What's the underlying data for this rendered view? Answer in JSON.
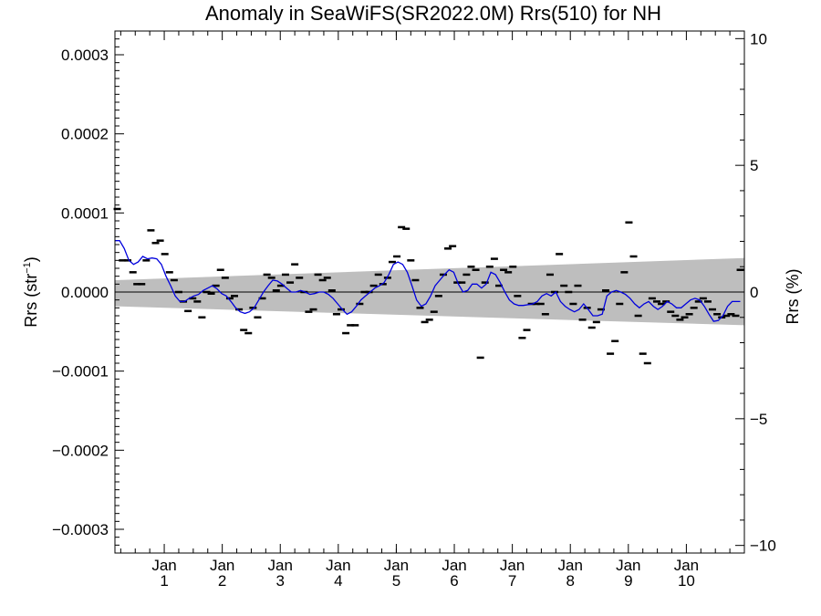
{
  "chart_data": {
    "type": "line",
    "title": "Anomaly in SeaWiFS(SR2022.0M) Rrs(510) for NH",
    "ylabel_left": "Rrs (str",
    "ylabel_left_sup": "−1",
    "ylabel_left_close": ")",
    "ylabel_right": "Rrs (%)",
    "xlim": [
      0,
      10.85
    ],
    "ylim": [
      -0.00033,
      0.00033
    ],
    "y2lim": [
      -10.3,
      10.3
    ],
    "grid": false,
    "legend": "none",
    "x_ticks": [
      {
        "x": 0.85,
        "line1": "Jan",
        "line2": "1"
      },
      {
        "x": 1.85,
        "line1": "Jan",
        "line2": "2"
      },
      {
        "x": 2.85,
        "line1": "Jan",
        "line2": "3"
      },
      {
        "x": 3.85,
        "line1": "Jan",
        "line2": "4"
      },
      {
        "x": 4.85,
        "line1": "Jan",
        "line2": "5"
      },
      {
        "x": 5.85,
        "line1": "Jan",
        "line2": "6"
      },
      {
        "x": 6.85,
        "line1": "Jan",
        "line2": "7"
      },
      {
        "x": 7.85,
        "line1": "Jan",
        "line2": "8"
      },
      {
        "x": 8.85,
        "line1": "Jan",
        "line2": "9"
      },
      {
        "x": 9.85,
        "line1": "Jan",
        "line2": "10"
      }
    ],
    "y_ticks_left": [
      {
        "v": 0.0003,
        "label": "0.0003"
      },
      {
        "v": 0.0002,
        "label": "0.0002"
      },
      {
        "v": 0.0001,
        "label": "0.0001"
      },
      {
        "v": 0.0,
        "label": "0.0000"
      },
      {
        "v": -0.0001,
        "label": "−0.0001"
      },
      {
        "v": -0.0002,
        "label": "−0.0002"
      },
      {
        "v": -0.0003,
        "label": "−0.0003"
      }
    ],
    "y_ticks_right": [
      {
        "v": 10,
        "label": "10"
      },
      {
        "v": 5,
        "label": "5"
      },
      {
        "v": 0,
        "label": "0"
      },
      {
        "v": -5,
        "label": "−5"
      },
      {
        "v": -10,
        "label": "−10"
      }
    ],
    "band": {
      "x": [
        0,
        10.85
      ],
      "upper": [
        1.5e-05,
        4.3e-05
      ],
      "lower": [
        -1.8e-05,
        -4.2e-05
      ],
      "color": "#bebebe"
    },
    "zero_line_color": "#000000",
    "series": [
      {
        "kind": "monthly",
        "color": "#000000",
        "points": [
          [
            0.04,
            0.000105
          ],
          [
            0.13,
            4e-05
          ],
          [
            0.22,
            4e-05
          ],
          [
            0.31,
            2.5e-05
          ],
          [
            0.38,
            1e-05
          ],
          [
            0.46,
            1e-05
          ],
          [
            0.54,
            4e-05
          ],
          [
            0.62,
            7.8e-05
          ],
          [
            0.7,
            6.2e-05
          ],
          [
            0.78,
            6.5e-05
          ],
          [
            0.86,
            4.8e-05
          ],
          [
            0.94,
            2.5e-05
          ],
          [
            1.02,
            1.5e-05
          ],
          [
            1.1,
            0.0
          ],
          [
            1.18,
            -1.2e-05
          ],
          [
            1.26,
            -2.4e-05
          ],
          [
            1.34,
            -8e-06
          ],
          [
            1.42,
            -1.2e-05
          ],
          [
            1.5,
            -3.2e-05
          ],
          [
            1.58,
            0.0
          ],
          [
            1.66,
            -2e-06
          ],
          [
            1.74,
            8e-06
          ],
          [
            1.82,
            2.8e-05
          ],
          [
            1.9,
            1.8e-05
          ],
          [
            1.98,
            -8e-06
          ],
          [
            2.06,
            -5e-06
          ],
          [
            2.14,
            -2.2e-05
          ],
          [
            2.22,
            -4.8e-05
          ],
          [
            2.3,
            -5.2e-05
          ],
          [
            2.38,
            -2e-05
          ],
          [
            2.46,
            -3.2e-05
          ],
          [
            2.54,
            -8e-06
          ],
          [
            2.62,
            2.2e-05
          ],
          [
            2.7,
            1.8e-05
          ],
          [
            2.78,
            2e-06
          ],
          [
            2.86,
            8e-06
          ],
          [
            2.94,
            2.2e-05
          ],
          [
            3.02,
            1.2e-05
          ],
          [
            3.1,
            3.5e-05
          ],
          [
            3.18,
            1.8e-05
          ],
          [
            3.26,
            0.0
          ],
          [
            3.34,
            -2.5e-05
          ],
          [
            3.42,
            -2.2e-05
          ],
          [
            3.5,
            2.2e-05
          ],
          [
            3.58,
            1.5e-05
          ],
          [
            3.66,
            1.8e-05
          ],
          [
            3.74,
            2e-06
          ],
          [
            3.82,
            -2.8e-05
          ],
          [
            3.9,
            -2.2e-05
          ],
          [
            3.98,
            -5.2e-05
          ],
          [
            4.06,
            -4.2e-05
          ],
          [
            4.14,
            -4.2e-05
          ],
          [
            4.22,
            -1.5e-05
          ],
          [
            4.3,
            0.0
          ],
          [
            4.38,
            0.0
          ],
          [
            4.46,
            8e-06
          ],
          [
            4.54,
            2.2e-05
          ],
          [
            4.62,
            1e-05
          ],
          [
            4.7,
            1.8e-05
          ],
          [
            4.78,
            3.8e-05
          ],
          [
            4.86,
            4.5e-05
          ],
          [
            4.94,
            8.2e-05
          ],
          [
            5.02,
            8e-05
          ],
          [
            5.1,
            4e-05
          ],
          [
            5.18,
            1.5e-05
          ],
          [
            5.26,
            -2e-05
          ],
          [
            5.34,
            -3.8e-05
          ],
          [
            5.42,
            -3.5e-05
          ],
          [
            5.5,
            -2.5e-05
          ],
          [
            5.58,
            -5e-06
          ],
          [
            5.66,
            2.2e-05
          ],
          [
            5.74,
            5.5e-05
          ],
          [
            5.82,
            5.8e-05
          ],
          [
            5.9,
            1.2e-05
          ],
          [
            5.98,
            1.2e-05
          ],
          [
            6.06,
            2.2e-05
          ],
          [
            6.14,
            3.2e-05
          ],
          [
            6.22,
            2.8e-05
          ],
          [
            6.3,
            -8.3e-05
          ],
          [
            6.38,
            1.2e-05
          ],
          [
            6.46,
            3.2e-05
          ],
          [
            6.54,
            4.2e-05
          ],
          [
            6.62,
            8e-06
          ],
          [
            6.7,
            2.8e-05
          ],
          [
            6.78,
            2.5e-05
          ],
          [
            6.86,
            3.2e-05
          ],
          [
            6.94,
            -5e-06
          ],
          [
            7.02,
            -5.8e-05
          ],
          [
            7.1,
            -4.8e-05
          ],
          [
            7.18,
            -1.5e-05
          ],
          [
            7.26,
            -1.5e-05
          ],
          [
            7.34,
            -1.5e-05
          ],
          [
            7.42,
            -2.8e-05
          ],
          [
            7.5,
            2.2e-05
          ],
          [
            7.58,
            0.0
          ],
          [
            7.66,
            4.8e-05
          ],
          [
            7.74,
            8e-06
          ],
          [
            7.82,
            0.0
          ],
          [
            7.9,
            -1.5e-05
          ],
          [
            7.98,
            8e-06
          ],
          [
            8.06,
            -3.5e-05
          ],
          [
            8.14,
            -2e-05
          ],
          [
            8.22,
            -4.5e-05
          ],
          [
            8.3,
            -3.8e-05
          ],
          [
            8.38,
            -2.2e-05
          ],
          [
            8.46,
            2e-06
          ],
          [
            8.54,
            -7.8e-05
          ],
          [
            8.62,
            -6.2e-05
          ],
          [
            8.7,
            -1.5e-05
          ],
          [
            8.78,
            2.5e-05
          ],
          [
            8.86,
            8.8e-05
          ],
          [
            8.94,
            4.5e-05
          ],
          [
            9.02,
            -3e-05
          ],
          [
            9.1,
            -7.8e-05
          ],
          [
            9.18,
            -9e-05
          ],
          [
            9.26,
            -8e-06
          ],
          [
            9.34,
            -1.2e-05
          ],
          [
            9.42,
            -1.5e-05
          ],
          [
            9.5,
            -1.2e-05
          ],
          [
            9.58,
            -2.5e-05
          ],
          [
            9.66,
            -3e-05
          ],
          [
            9.74,
            -3.5e-05
          ],
          [
            9.82,
            -3.2e-05
          ],
          [
            9.9,
            -2.8e-05
          ],
          [
            9.98,
            -2e-05
          ],
          [
            10.06,
            -1.2e-05
          ],
          [
            10.14,
            -8e-06
          ],
          [
            10.22,
            -1.2e-05
          ],
          [
            10.3,
            -2.2e-05
          ],
          [
            10.38,
            -2.8e-05
          ],
          [
            10.46,
            -3.2e-05
          ],
          [
            10.54,
            -3e-05
          ],
          [
            10.62,
            -2.8e-05
          ],
          [
            10.7,
            -3e-05
          ],
          [
            10.78,
            2.8e-05
          ]
        ]
      },
      {
        "kind": "running-mean",
        "color": "#0000dd",
        "points": [
          [
            0.0,
            6.5e-05
          ],
          [
            0.08,
            6.5e-05
          ],
          [
            0.16,
            5.5e-05
          ],
          [
            0.24,
            4e-05
          ],
          [
            0.32,
            3.5e-05
          ],
          [
            0.4,
            3.8e-05
          ],
          [
            0.48,
            4.5e-05
          ],
          [
            0.56,
            4.2e-05
          ],
          [
            0.64,
            4.3e-05
          ],
          [
            0.72,
            4.2e-05
          ],
          [
            0.8,
            3.5e-05
          ],
          [
            0.88,
            2e-05
          ],
          [
            0.96,
            8e-06
          ],
          [
            1.04,
            -5e-06
          ],
          [
            1.12,
            -1.2e-05
          ],
          [
            1.2,
            -1.2e-05
          ],
          [
            1.28,
            -8e-06
          ],
          [
            1.36,
            -5e-06
          ],
          [
            1.44,
            -3e-06
          ],
          [
            1.52,
            2e-06
          ],
          [
            1.6,
            5e-06
          ],
          [
            1.68,
            8e-06
          ],
          [
            1.76,
            4e-06
          ],
          [
            1.84,
            -2e-06
          ],
          [
            1.92,
            -5e-06
          ],
          [
            2.0,
            -1.2e-05
          ],
          [
            2.08,
            -2e-05
          ],
          [
            2.16,
            -2.5e-05
          ],
          [
            2.24,
            -2.7e-05
          ],
          [
            2.32,
            -2.5e-05
          ],
          [
            2.4,
            -2e-05
          ],
          [
            2.48,
            -1e-05
          ],
          [
            2.56,
            0.0
          ],
          [
            2.64,
            8e-06
          ],
          [
            2.72,
            1.5e-05
          ],
          [
            2.8,
            1.4e-05
          ],
          [
            2.88,
            1e-05
          ],
          [
            2.96,
            5e-06
          ],
          [
            3.04,
            0.0
          ],
          [
            3.12,
            0.0
          ],
          [
            3.2,
            2e-06
          ],
          [
            3.28,
            0.0
          ],
          [
            3.36,
            -3e-06
          ],
          [
            3.44,
            -2e-06
          ],
          [
            3.52,
            0.0
          ],
          [
            3.6,
            0.0
          ],
          [
            3.68,
            -3e-06
          ],
          [
            3.76,
            -8e-06
          ],
          [
            3.84,
            -1.5e-05
          ],
          [
            3.92,
            -2.2e-05
          ],
          [
            4.0,
            -2.8e-05
          ],
          [
            4.08,
            -2.5e-05
          ],
          [
            4.16,
            -1.8e-05
          ],
          [
            4.24,
            -1e-05
          ],
          [
            4.32,
            -5e-06
          ],
          [
            4.4,
            0.0
          ],
          [
            4.48,
            5e-06
          ],
          [
            4.56,
            8e-06
          ],
          [
            4.64,
            1.2e-05
          ],
          [
            4.72,
            2.2e-05
          ],
          [
            4.8,
            3.5e-05
          ],
          [
            4.88,
            3.8e-05
          ],
          [
            4.96,
            3.5e-05
          ],
          [
            5.04,
            2.5e-05
          ],
          [
            5.12,
            8e-06
          ],
          [
            5.2,
            -1e-05
          ],
          [
            5.28,
            -1.8e-05
          ],
          [
            5.36,
            -1.5e-05
          ],
          [
            5.44,
            -5e-06
          ],
          [
            5.52,
            8e-06
          ],
          [
            5.6,
            1.5e-05
          ],
          [
            5.68,
            2.2e-05
          ],
          [
            5.76,
            2.8e-05
          ],
          [
            5.84,
            2.5e-05
          ],
          [
            5.92,
            1e-05
          ],
          [
            6.0,
            0.0
          ],
          [
            6.08,
            2e-06
          ],
          [
            6.16,
            1e-05
          ],
          [
            6.24,
            1e-05
          ],
          [
            6.32,
            5e-06
          ],
          [
            6.4,
            1e-05
          ],
          [
            6.48,
            2.5e-05
          ],
          [
            6.56,
            2.2e-05
          ],
          [
            6.64,
            1.2e-05
          ],
          [
            6.72,
            0.0
          ],
          [
            6.8,
            -1e-05
          ],
          [
            6.88,
            -1.5e-05
          ],
          [
            6.96,
            -1.7e-05
          ],
          [
            7.04,
            -1.7e-05
          ],
          [
            7.12,
            -1.6e-05
          ],
          [
            7.2,
            -1.5e-05
          ],
          [
            7.28,
            -1.2e-05
          ],
          [
            7.36,
            -5e-06
          ],
          [
            7.44,
            -2e-06
          ],
          [
            7.52,
            -5e-06
          ],
          [
            7.6,
            0.0
          ],
          [
            7.68,
            -1.2e-05
          ],
          [
            7.76,
            -1.8e-05
          ],
          [
            7.84,
            -2.2e-05
          ],
          [
            7.92,
            -2.5e-05
          ],
          [
            8.0,
            -2.2e-05
          ],
          [
            8.08,
            -1.5e-05
          ],
          [
            8.16,
            -2.2e-05
          ],
          [
            8.24,
            -3e-05
          ],
          [
            8.32,
            -3e-05
          ],
          [
            8.4,
            -2.8e-05
          ],
          [
            8.48,
            -5e-06
          ],
          [
            8.56,
            0.0
          ],
          [
            8.64,
            2e-06
          ],
          [
            8.72,
            0.0
          ],
          [
            8.8,
            -3e-06
          ],
          [
            8.88,
            -8e-06
          ],
          [
            8.96,
            -1.5e-05
          ],
          [
            9.04,
            -2e-05
          ],
          [
            9.12,
            -1.5e-05
          ],
          [
            9.2,
            -1.2e-05
          ],
          [
            9.28,
            -1.8e-05
          ],
          [
            9.36,
            -2.2e-05
          ],
          [
            9.44,
            -1.8e-05
          ],
          [
            9.52,
            -1.2e-05
          ],
          [
            9.6,
            -1.5e-05
          ],
          [
            9.68,
            -2e-05
          ],
          [
            9.76,
            -2e-05
          ],
          [
            9.84,
            -1.5e-05
          ],
          [
            9.92,
            -1e-05
          ],
          [
            10.0,
            -8e-06
          ],
          [
            10.08,
            -1e-05
          ],
          [
            10.16,
            -1.8e-05
          ],
          [
            10.24,
            -2.8e-05
          ],
          [
            10.32,
            -3.7e-05
          ],
          [
            10.4,
            -3.6e-05
          ],
          [
            10.48,
            -3e-05
          ],
          [
            10.56,
            -1.8e-05
          ],
          [
            10.64,
            -1.2e-05
          ],
          [
            10.72,
            -1.2e-05
          ],
          [
            10.78,
            -1.2e-05
          ]
        ]
      }
    ]
  }
}
